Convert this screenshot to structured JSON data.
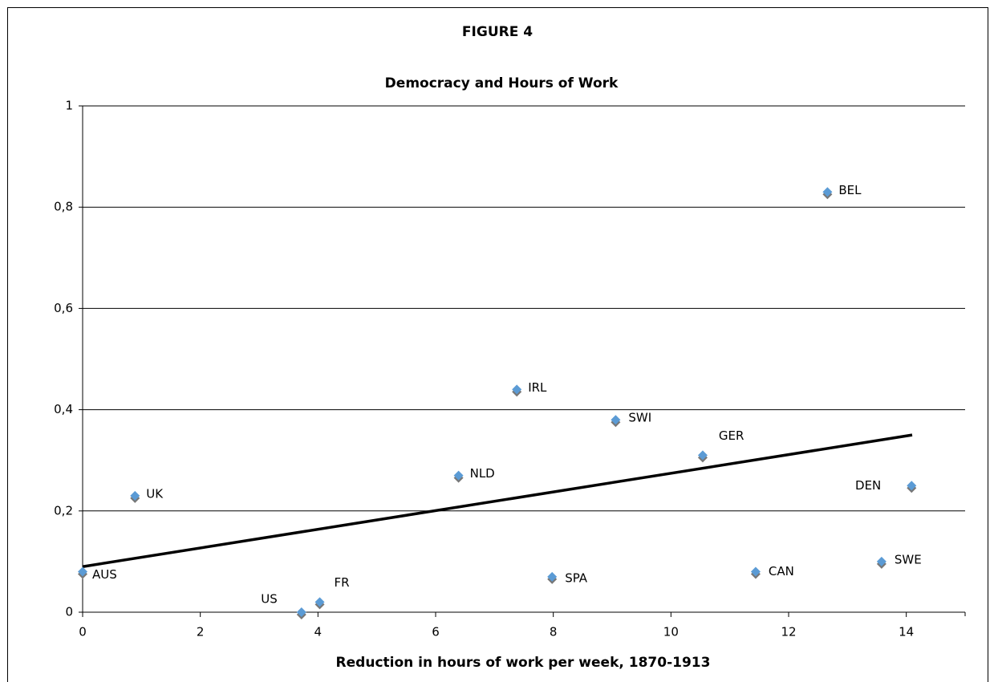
{
  "chart_data": {
    "type": "scatter",
    "title": "FIGURE 4",
    "subtitle": "Democracy and Hours of Work",
    "x_label": "Reduction in hours of work per week, 1870-1913",
    "series": [
      {
        "color": "#5b9bd5",
        "labels": [
          "AUS",
          "UK",
          "US",
          "FR",
          "NLD",
          "IRL",
          "SPA",
          "SWI",
          "GER",
          "CAN",
          "BEL",
          "SWE",
          "DEN"
        ],
        "x": [
          0,
          0.89,
          3.72,
          4.03,
          6.39,
          7.38,
          7.98,
          9.06,
          10.54,
          11.44,
          12.66,
          13.58,
          14.09
        ],
        "values": [
          0.08,
          0.23,
          0,
          0.02,
          0.27,
          0.44,
          0.07,
          0.38,
          0.31,
          0.08,
          0.83,
          0.1,
          0.25
        ]
      }
    ],
    "trendline": {
      "color": "#000000",
      "x": [
        0,
        14.1
      ],
      "values": [
        0.09,
        0.35
      ]
    },
    "xlim": [
      0,
      15
    ],
    "xticks": [
      0,
      2,
      4,
      6,
      8,
      10,
      12,
      14
    ],
    "ylim": [
      0,
      1
    ],
    "yticks": [
      0,
      {
        "value": 0.2,
        "label": "0,2"
      },
      {
        "value": 0.4,
        "label": "0,4"
      },
      {
        "value": 0.6,
        "label": "0,6"
      },
      {
        "value": 0.8,
        "label": "0,8"
      },
      1
    ],
    "grid": true
  }
}
